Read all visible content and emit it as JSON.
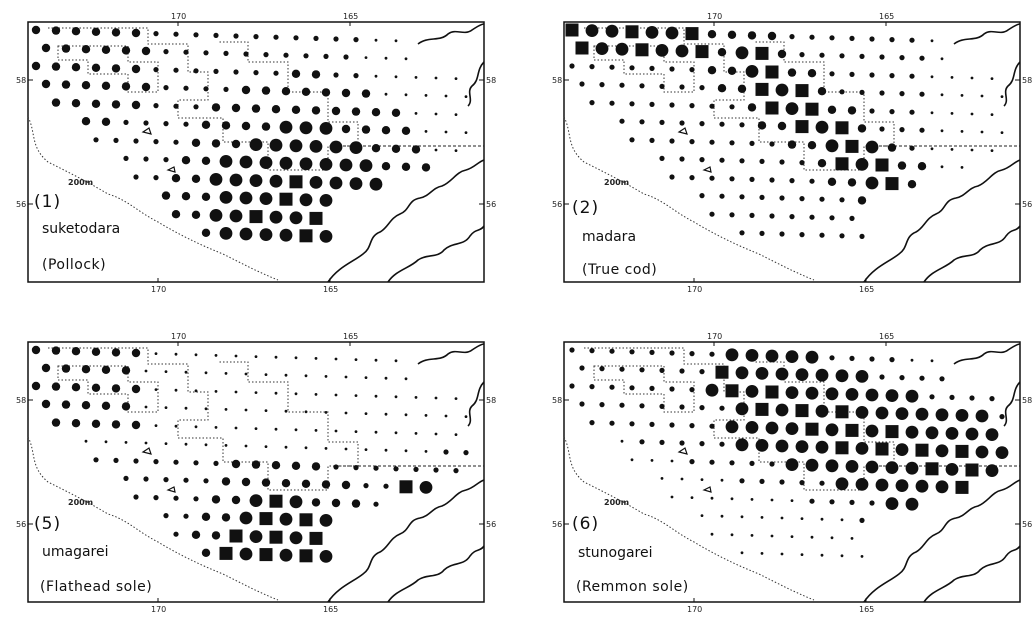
{
  "figure": {
    "panels": [
      {
        "id": "p1",
        "number": "(1)",
        "name": "suketodara",
        "common": "(Pollock)",
        "top_ticks": [
          "170",
          "165"
        ],
        "bottom_ticks": [
          "170",
          "165"
        ],
        "left_ticks": [
          "58",
          "56"
        ],
        "right_ticks": [
          "58",
          "56"
        ],
        "depth": "200m",
        "densest": "south-east shelf",
        "pattern": "p1"
      },
      {
        "id": "p2",
        "number": "(2)",
        "name": "madara",
        "common": "(True cod)",
        "top_ticks": [
          "170",
          "165"
        ],
        "bottom_ticks": [
          "170",
          "165"
        ],
        "left_ticks": [
          "58",
          "56"
        ],
        "right_ticks": [
          "58",
          "56"
        ],
        "depth": "200m",
        "densest": "central diagonal band",
        "pattern": "p2"
      },
      {
        "id": "p5",
        "number": "(5)",
        "name": "umagarei",
        "common": "(Flathead sole)",
        "top_ticks": [
          "170",
          "165"
        ],
        "bottom_ticks": [
          "170",
          "165"
        ],
        "left_ticks": [
          "58",
          "56"
        ],
        "right_ticks": [
          "58",
          "56"
        ],
        "depth": "200m",
        "densest": "south-east shelf",
        "pattern": "p5"
      },
      {
        "id": "p6",
        "number": "(6)",
        "name": "stunogarei",
        "common": "(Remmon sole)",
        "top_ticks": [
          "170",
          "165"
        ],
        "bottom_ticks": [
          "170",
          "165"
        ],
        "left_ticks": [
          "58",
          "56"
        ],
        "right_ticks": [
          "58",
          "56"
        ],
        "depth": "200m",
        "densest": "northern band",
        "pattern": "p6"
      }
    ]
  }
}
